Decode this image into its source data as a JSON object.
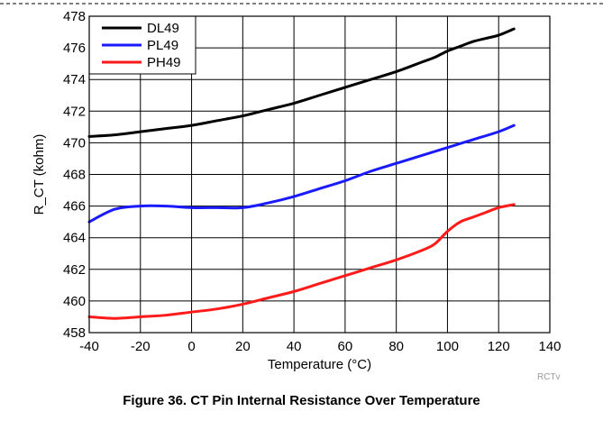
{
  "caption": "Figure 36. CT Pin Internal Resistance Over Temperature",
  "watermark": "RCTv",
  "chart_data": {
    "type": "line",
    "title": "",
    "xlabel": "Temperature (°C)",
    "ylabel": "R_CT (kohm)",
    "xlim": [
      -40,
      140
    ],
    "ylim": [
      458,
      478
    ],
    "xticks": [
      -40,
      -20,
      0,
      20,
      40,
      60,
      80,
      100,
      120,
      140
    ],
    "yticks": [
      458,
      460,
      462,
      464,
      466,
      468,
      470,
      472,
      474,
      476,
      478
    ],
    "grid": true,
    "legend": "top-left",
    "series": [
      {
        "name": "DL49",
        "color": "#000000",
        "x": [
          -40,
          -30,
          -20,
          -10,
          0,
          10,
          20,
          30,
          40,
          50,
          60,
          70,
          80,
          90,
          95,
          100,
          105,
          110,
          115,
          120,
          126
        ],
        "y": [
          470.4,
          470.5,
          470.7,
          470.9,
          471.1,
          471.4,
          471.7,
          472.1,
          472.5,
          473.0,
          473.5,
          474.0,
          474.5,
          475.1,
          475.4,
          475.8,
          476.1,
          476.4,
          476.6,
          476.8,
          477.2
        ]
      },
      {
        "name": "PL49",
        "color": "#1a1aff",
        "x": [
          -40,
          -30,
          -20,
          -10,
          0,
          10,
          20,
          30,
          40,
          50,
          60,
          70,
          80,
          90,
          100,
          110,
          120,
          126
        ],
        "y": [
          465.0,
          465.8,
          466.0,
          466.0,
          465.9,
          465.9,
          465.9,
          466.2,
          466.6,
          467.1,
          467.6,
          468.2,
          468.7,
          469.2,
          469.7,
          470.2,
          470.7,
          471.1
        ]
      },
      {
        "name": "PH49",
        "color": "#ff1a1a",
        "x": [
          -40,
          -30,
          -20,
          -10,
          0,
          10,
          20,
          30,
          40,
          50,
          60,
          70,
          80,
          90,
          95,
          100,
          105,
          110,
          115,
          120,
          126
        ],
        "y": [
          459.0,
          458.9,
          459.0,
          459.1,
          459.3,
          459.5,
          459.8,
          460.2,
          460.6,
          461.1,
          461.6,
          462.1,
          462.6,
          463.2,
          463.6,
          464.4,
          465.0,
          465.3,
          465.6,
          465.9,
          466.1
        ]
      }
    ]
  }
}
